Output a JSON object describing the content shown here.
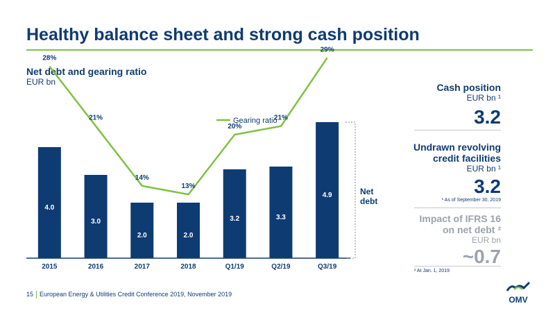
{
  "page": {
    "title": "Healthy balance sheet and strong cash position",
    "footer_page": "15",
    "footer_text": "European Energy & Utilities Credit Conference 2019, November 2019",
    "logo_text": "OMV"
  },
  "colors": {
    "navy": "#0f3b73",
    "green": "#7fc241",
    "gray": "#9aa3ae"
  },
  "chart_data": {
    "type": "bar",
    "title": "Net debt and gearing ratio",
    "subtitle": "EUR bn",
    "categories": [
      "2015",
      "2016",
      "2017",
      "2018",
      "Q1/19",
      "Q2/19",
      "Q3/19"
    ],
    "series": [
      {
        "name": "Net debt",
        "type": "bar",
        "values": [
          4.0,
          3.0,
          2.0,
          2.0,
          3.2,
          3.3,
          4.9
        ],
        "labels": [
          "4.0",
          "3.0",
          "2.0",
          "2.0",
          "3.2",
          "3.3",
          "4.9"
        ]
      },
      {
        "name": "Gearing ratio",
        "type": "line",
        "values": [
          28,
          21,
          14,
          13,
          20,
          21,
          29
        ],
        "labels": [
          "28%",
          "21%",
          "14%",
          "13%",
          "20%",
          "21%",
          "29%"
        ]
      }
    ],
    "bracket_label": [
      "Net",
      "debt"
    ],
    "legend_position": "top-right",
    "grid": false
  },
  "side": {
    "cash": {
      "label": "Cash position",
      "unit": "EUR bn ¹",
      "value": "3.2"
    },
    "credit": {
      "label_line1": "Undrawn revolving",
      "label_line2": "credit facilities",
      "unit": "EUR bn ¹",
      "value": "3.2",
      "note": "¹ As of September 30, 2019"
    },
    "ifrs": {
      "label_line1": "Impact of IFRS 16",
      "label_line2": "on net debt ²",
      "unit": "EUR bn",
      "value": "~0.7",
      "note": "² At Jan. 1, 2019"
    }
  }
}
